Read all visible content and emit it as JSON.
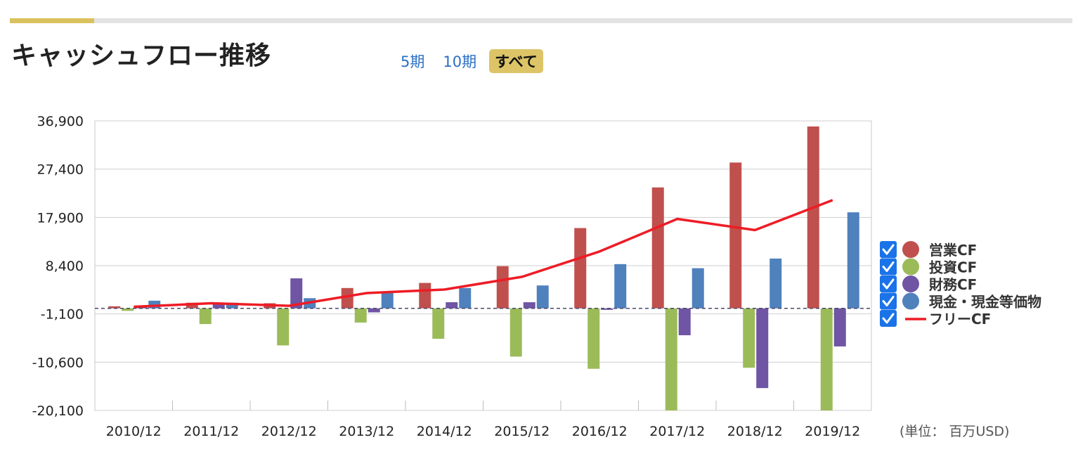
{
  "header": {
    "title": "キャッシュフロー推移",
    "tabs": [
      {
        "label": "5期",
        "active": false
      },
      {
        "label": "10期",
        "active": false
      },
      {
        "label": "すべて",
        "active": true
      }
    ]
  },
  "colors": {
    "operating": "#c0504d",
    "investing": "#9bbb59",
    "financing": "#6f55a3",
    "cash": "#4f81bd",
    "free": "#ee1c25",
    "checkbox": "#1a73e8",
    "accent": "#d9c15d"
  },
  "chart_data": {
    "type": "bar",
    "categories": [
      "2010/12",
      "2011/12",
      "2012/12",
      "2013/12",
      "2014/12",
      "2015/12",
      "2016/12",
      "2017/12",
      "2018/12",
      "2019/12"
    ],
    "y_ticks": [
      "36,900",
      "27,400",
      "17,900",
      "8,400",
      "-1,100",
      "-10,600",
      "-20,100"
    ],
    "ylim": [
      -20100,
      36900
    ],
    "baseline": 0,
    "grid": true,
    "legend_position": "right",
    "unit_label": "(単位： 百万USD)",
    "series": [
      {
        "name": "営業CF",
        "color": "#c0504d",
        "values": [
          400,
          1100,
          1000,
          4000,
          5000,
          8300,
          15800,
          23800,
          28700,
          35800
        ]
      },
      {
        "name": "投資CF",
        "color": "#9bbb59",
        "values": [
          -500,
          -3100,
          -7300,
          -2800,
          -6000,
          -9500,
          -11900,
          -20100,
          -11700,
          -20100
        ]
      },
      {
        "name": "財務CF",
        "color": "#6f55a3",
        "values": [
          200,
          1100,
          5900,
          -800,
          1200,
          1200,
          -300,
          -5300,
          -15700,
          -7500
        ]
      },
      {
        "name": "現金・現金等価物",
        "color": "#4f81bd",
        "values": [
          1500,
          1100,
          2000,
          3000,
          4000,
          4500,
          8700,
          7900,
          9800,
          18900
        ]
      },
      {
        "name": "フリーCF",
        "color": "#ee1c25",
        "type": "line",
        "values": [
          300,
          1000,
          500,
          3000,
          3700,
          6200,
          11200,
          17600,
          15400,
          21300
        ]
      }
    ]
  }
}
